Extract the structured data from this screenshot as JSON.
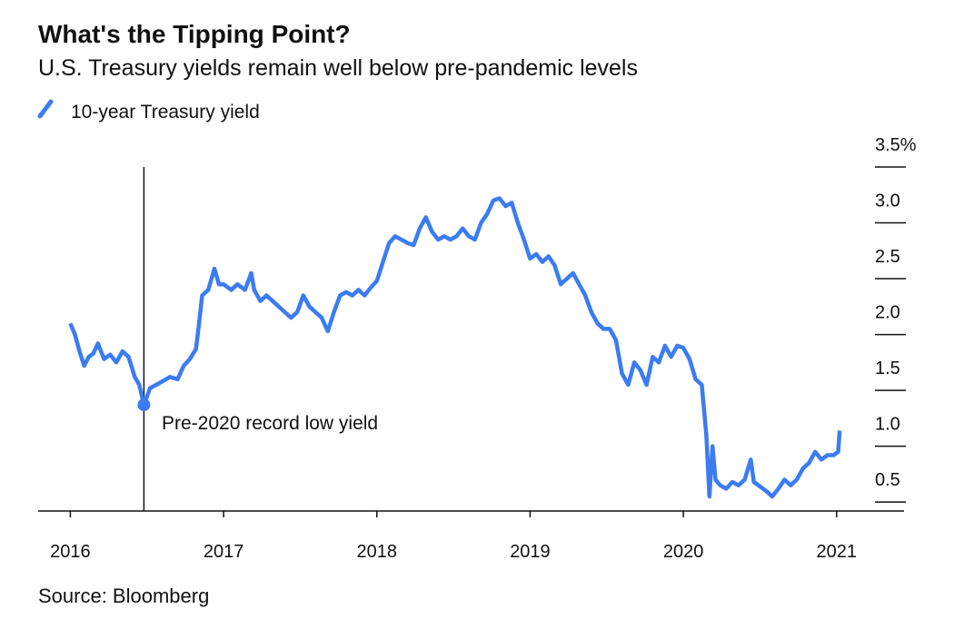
{
  "chart_data": {
    "type": "line",
    "title": "What's the Tipping Point?",
    "subtitle": "U.S. Treasury yields remain well below pre-pandemic levels",
    "source": "Source: Bloomberg",
    "x": [
      2016.0,
      2016.03,
      2016.06,
      2016.09,
      2016.12,
      2016.15,
      2016.18,
      2016.22,
      2016.26,
      2016.3,
      2016.34,
      2016.38,
      2016.42,
      2016.45,
      2016.48,
      2016.52,
      2016.56,
      2016.6,
      2016.65,
      2016.7,
      2016.74,
      2016.78,
      2016.82,
      2016.84,
      2016.86,
      2016.9,
      2016.94,
      2016.97,
      2017.0,
      2017.05,
      2017.09,
      2017.14,
      2017.18,
      2017.2,
      2017.24,
      2017.28,
      2017.32,
      2017.36,
      2017.4,
      2017.44,
      2017.48,
      2017.52,
      2017.56,
      2017.6,
      2017.64,
      2017.68,
      2017.72,
      2017.76,
      2017.8,
      2017.84,
      2017.88,
      2017.92,
      2017.96,
      2018.0,
      2018.04,
      2018.08,
      2018.12,
      2018.16,
      2018.2,
      2018.24,
      2018.28,
      2018.32,
      2018.36,
      2018.4,
      2018.44,
      2018.48,
      2018.52,
      2018.56,
      2018.6,
      2018.64,
      2018.68,
      2018.72,
      2018.76,
      2018.8,
      2018.84,
      2018.88,
      2018.92,
      2018.96,
      2019.0,
      2019.04,
      2019.08,
      2019.12,
      2019.16,
      2019.2,
      2019.24,
      2019.28,
      2019.32,
      2019.36,
      2019.4,
      2019.44,
      2019.48,
      2019.52,
      2019.56,
      2019.6,
      2019.64,
      2019.68,
      2019.72,
      2019.76,
      2019.8,
      2019.84,
      2019.88,
      2019.92,
      2019.96,
      2020.0,
      2020.04,
      2020.08,
      2020.12,
      2020.15,
      2020.17,
      2020.19,
      2020.21,
      2020.24,
      2020.28,
      2020.32,
      2020.36,
      2020.4,
      2020.44,
      2020.46,
      2020.5,
      2020.54,
      2020.58,
      2020.62,
      2020.66,
      2020.7,
      2020.74,
      2020.78,
      2020.82,
      2020.86,
      2020.9,
      2020.94,
      2020.98,
      2021.01,
      2021.02
    ],
    "series": [
      {
        "name": "10-year Treasury yield",
        "color": "#3b7cf3",
        "values": [
          2.1,
          2.0,
          1.85,
          1.72,
          1.8,
          1.83,
          1.92,
          1.78,
          1.82,
          1.75,
          1.85,
          1.8,
          1.62,
          1.55,
          1.37,
          1.52,
          1.55,
          1.58,
          1.62,
          1.6,
          1.72,
          1.78,
          1.87,
          2.1,
          2.35,
          2.4,
          2.59,
          2.45,
          2.45,
          2.4,
          2.45,
          2.4,
          2.55,
          2.4,
          2.3,
          2.35,
          2.3,
          2.25,
          2.2,
          2.15,
          2.2,
          2.35,
          2.25,
          2.2,
          2.15,
          2.03,
          2.2,
          2.35,
          2.38,
          2.35,
          2.4,
          2.35,
          2.42,
          2.48,
          2.65,
          2.82,
          2.88,
          2.85,
          2.82,
          2.8,
          2.95,
          3.05,
          2.92,
          2.85,
          2.88,
          2.85,
          2.88,
          2.95,
          2.88,
          2.85,
          3.0,
          3.08,
          3.2,
          3.22,
          3.15,
          3.18,
          3.0,
          2.85,
          2.68,
          2.72,
          2.65,
          2.7,
          2.62,
          2.45,
          2.5,
          2.55,
          2.45,
          2.35,
          2.2,
          2.1,
          2.05,
          2.05,
          1.95,
          1.65,
          1.55,
          1.75,
          1.68,
          1.55,
          1.8,
          1.75,
          1.9,
          1.8,
          1.9,
          1.88,
          1.78,
          1.6,
          1.55,
          1.1,
          0.55,
          1.0,
          0.7,
          0.65,
          0.62,
          0.68,
          0.65,
          0.7,
          0.88,
          0.68,
          0.64,
          0.6,
          0.55,
          0.62,
          0.7,
          0.65,
          0.7,
          0.8,
          0.85,
          0.95,
          0.88,
          0.92,
          0.92,
          0.95,
          1.14
        ]
      }
    ],
    "annotation": {
      "text": "Pre-2020 record low yield",
      "x": 2016.48,
      "value": 1.37
    },
    "xlim": [
      2015.79,
      2021.44
    ],
    "xticks": [
      2016,
      2017,
      2018,
      2019,
      2020,
      2021
    ],
    "ylim": [
      0.42,
      3.5
    ],
    "yticks": [
      0.5,
      {
        "value": 1,
        "label": "1.0"
      },
      1.5,
      {
        "value": 2,
        "label": "2.0"
      },
      2.5,
      {
        "value": 3,
        "label": "3.0"
      },
      {
        "value": 3.5,
        "label": "3.5%"
      }
    ]
  }
}
